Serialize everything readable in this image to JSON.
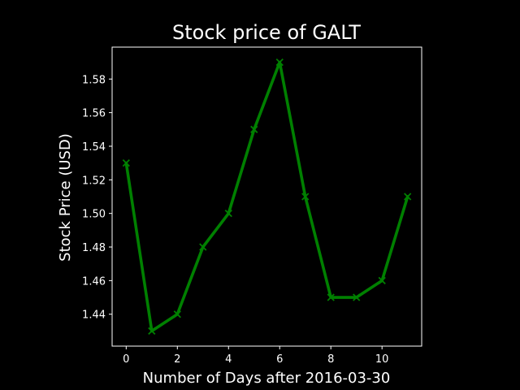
{
  "chart_data": {
    "type": "line",
    "title": "Stock price of GALT",
    "xlabel": "Number of Days after 2016-03-30",
    "ylabel": "Stock Price (USD)",
    "x": [
      0,
      1,
      2,
      3,
      4,
      5,
      6,
      7,
      8,
      9,
      10,
      11
    ],
    "series": [
      {
        "values": [
          1.53,
          1.43,
          1.44,
          1.48,
          1.5,
          1.55,
          1.59,
          1.51,
          1.45,
          1.45,
          1.46,
          1.51
        ]
      }
    ],
    "xlim": [
      -0.55,
      11.55
    ],
    "ylim": [
      1.421,
      1.599
    ],
    "xticks": [
      0,
      2,
      4,
      6,
      8,
      10
    ],
    "xtick_labels": [
      "0",
      "2",
      "4",
      "6",
      "8",
      "10"
    ],
    "yticks": [
      1.44,
      1.46,
      1.48,
      1.5,
      1.52,
      1.54,
      1.56,
      1.58
    ],
    "ytick_labels": [
      "1.44",
      "1.46",
      "1.48",
      "1.50",
      "1.52",
      "1.54",
      "1.56",
      "1.58"
    ],
    "grid": false,
    "marker": "x",
    "line_color": "#008000",
    "background_color": "#000000",
    "axes_color": "#ffffff",
    "text_color": "#ffffff"
  }
}
